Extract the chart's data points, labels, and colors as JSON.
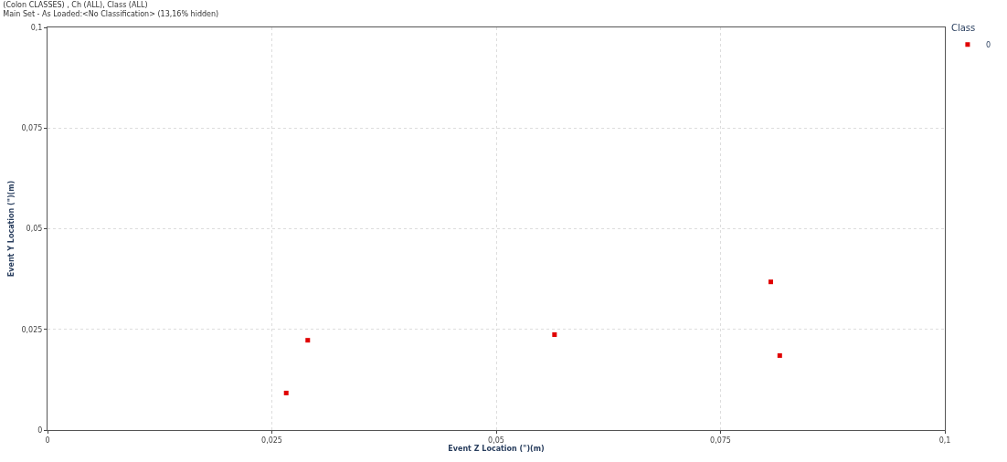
{
  "chart_data": {
    "type": "scatter",
    "title": "(Colon CLASSES) , Ch (ALL), Class (ALL)",
    "subtitle": "Main Set - As Loaded:<No Classification> (13,16% hidden)",
    "xlabel": "Event Z Location (\")(m)",
    "ylabel": "Event Y Location (\")(m)",
    "legend_title": "Class",
    "x": [
      0.0266,
      0.029,
      0.0565,
      0.0806,
      0.0816
    ],
    "series": [
      {
        "name": "0",
        "color": "#e00000",
        "values": [
          0.0092,
          0.0223,
          0.0237,
          0.0368,
          0.0185
        ]
      }
    ],
    "xlim": [
      0,
      0.1
    ],
    "ylim": [
      0,
      0.1
    ],
    "xticks": [
      0,
      {
        "value": 0.025,
        "label": "0,025"
      },
      {
        "value": 0.05,
        "label": "0,05"
      },
      {
        "value": 0.075,
        "label": "0,075"
      },
      {
        "value": 0.1,
        "label": "0,1"
      }
    ],
    "yticks": [
      0,
      {
        "value": 0.025,
        "label": "0,025"
      },
      {
        "value": 0.05,
        "label": "0,05"
      },
      {
        "value": 0.075,
        "label": "0,075"
      },
      {
        "value": 0.1,
        "label": "0,1"
      }
    ],
    "grid": true,
    "legend": "top right",
    "marker": "square"
  }
}
